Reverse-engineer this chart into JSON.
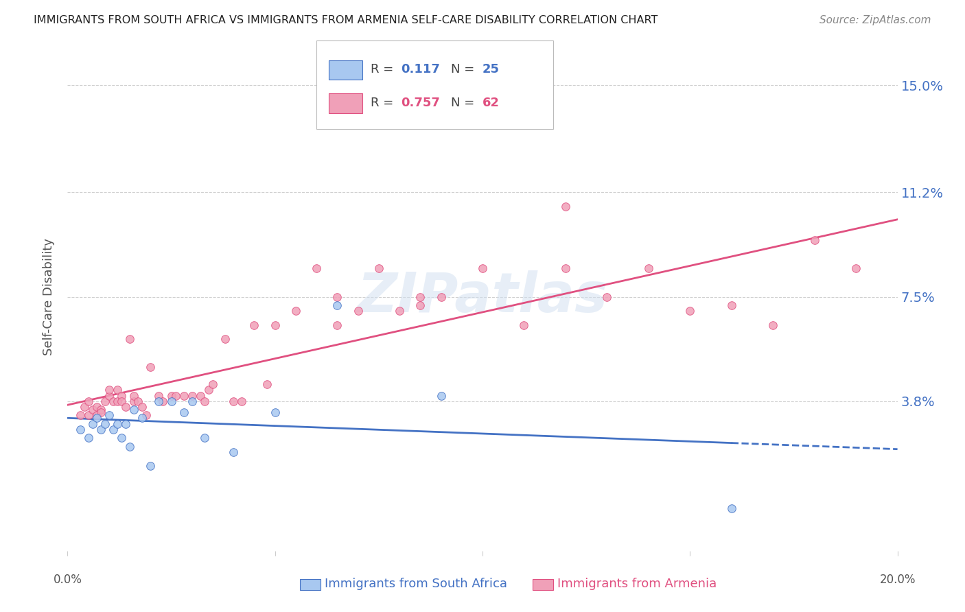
{
  "title": "IMMIGRANTS FROM SOUTH AFRICA VS IMMIGRANTS FROM ARMENIA SELF-CARE DISABILITY CORRELATION CHART",
  "source": "Source: ZipAtlas.com",
  "ylabel": "Self-Care Disability",
  "ytick_labels": [
    "15.0%",
    "11.2%",
    "7.5%",
    "3.8%"
  ],
  "ytick_values": [
    0.15,
    0.112,
    0.075,
    0.038
  ],
  "xlim": [
    0.0,
    0.2
  ],
  "ylim": [
    -0.015,
    0.165
  ],
  "r_south_africa": 0.117,
  "n_south_africa": 25,
  "r_armenia": 0.757,
  "n_armenia": 62,
  "color_south_africa": "#a8c8f0",
  "color_armenia": "#f0a0b8",
  "line_color_south_africa": "#4472c4",
  "line_color_armenia": "#e05080",
  "watermark": "ZIPatlas",
  "south_africa_x": [
    0.003,
    0.005,
    0.006,
    0.007,
    0.008,
    0.009,
    0.01,
    0.011,
    0.012,
    0.013,
    0.014,
    0.015,
    0.016,
    0.018,
    0.02,
    0.022,
    0.025,
    0.028,
    0.03,
    0.033,
    0.04,
    0.05,
    0.065,
    0.09,
    0.16
  ],
  "south_africa_y": [
    0.028,
    0.025,
    0.03,
    0.032,
    0.028,
    0.03,
    0.033,
    0.028,
    0.03,
    0.025,
    0.03,
    0.022,
    0.035,
    0.032,
    0.015,
    0.038,
    0.038,
    0.034,
    0.038,
    0.025,
    0.02,
    0.034,
    0.072,
    0.04,
    0.0
  ],
  "armenia_x": [
    0.003,
    0.004,
    0.005,
    0.005,
    0.006,
    0.007,
    0.007,
    0.008,
    0.008,
    0.009,
    0.01,
    0.01,
    0.011,
    0.012,
    0.012,
    0.013,
    0.013,
    0.014,
    0.015,
    0.016,
    0.016,
    0.017,
    0.018,
    0.019,
    0.02,
    0.022,
    0.023,
    0.025,
    0.026,
    0.028,
    0.03,
    0.032,
    0.033,
    0.034,
    0.035,
    0.038,
    0.04,
    0.042,
    0.045,
    0.048,
    0.05,
    0.055,
    0.06,
    0.065,
    0.07,
    0.075,
    0.08,
    0.085,
    0.09,
    0.1,
    0.11,
    0.12,
    0.13,
    0.14,
    0.15,
    0.16,
    0.17,
    0.18,
    0.19,
    0.12,
    0.065,
    0.085
  ],
  "armenia_y": [
    0.033,
    0.036,
    0.038,
    0.033,
    0.035,
    0.036,
    0.033,
    0.035,
    0.034,
    0.038,
    0.04,
    0.042,
    0.038,
    0.038,
    0.042,
    0.04,
    0.038,
    0.036,
    0.06,
    0.038,
    0.04,
    0.038,
    0.036,
    0.033,
    0.05,
    0.04,
    0.038,
    0.04,
    0.04,
    0.04,
    0.04,
    0.04,
    0.038,
    0.042,
    0.044,
    0.06,
    0.038,
    0.038,
    0.065,
    0.044,
    0.065,
    0.07,
    0.085,
    0.075,
    0.07,
    0.085,
    0.07,
    0.072,
    0.075,
    0.085,
    0.065,
    0.107,
    0.075,
    0.085,
    0.07,
    0.072,
    0.065,
    0.095,
    0.085,
    0.085,
    0.065,
    0.075
  ]
}
